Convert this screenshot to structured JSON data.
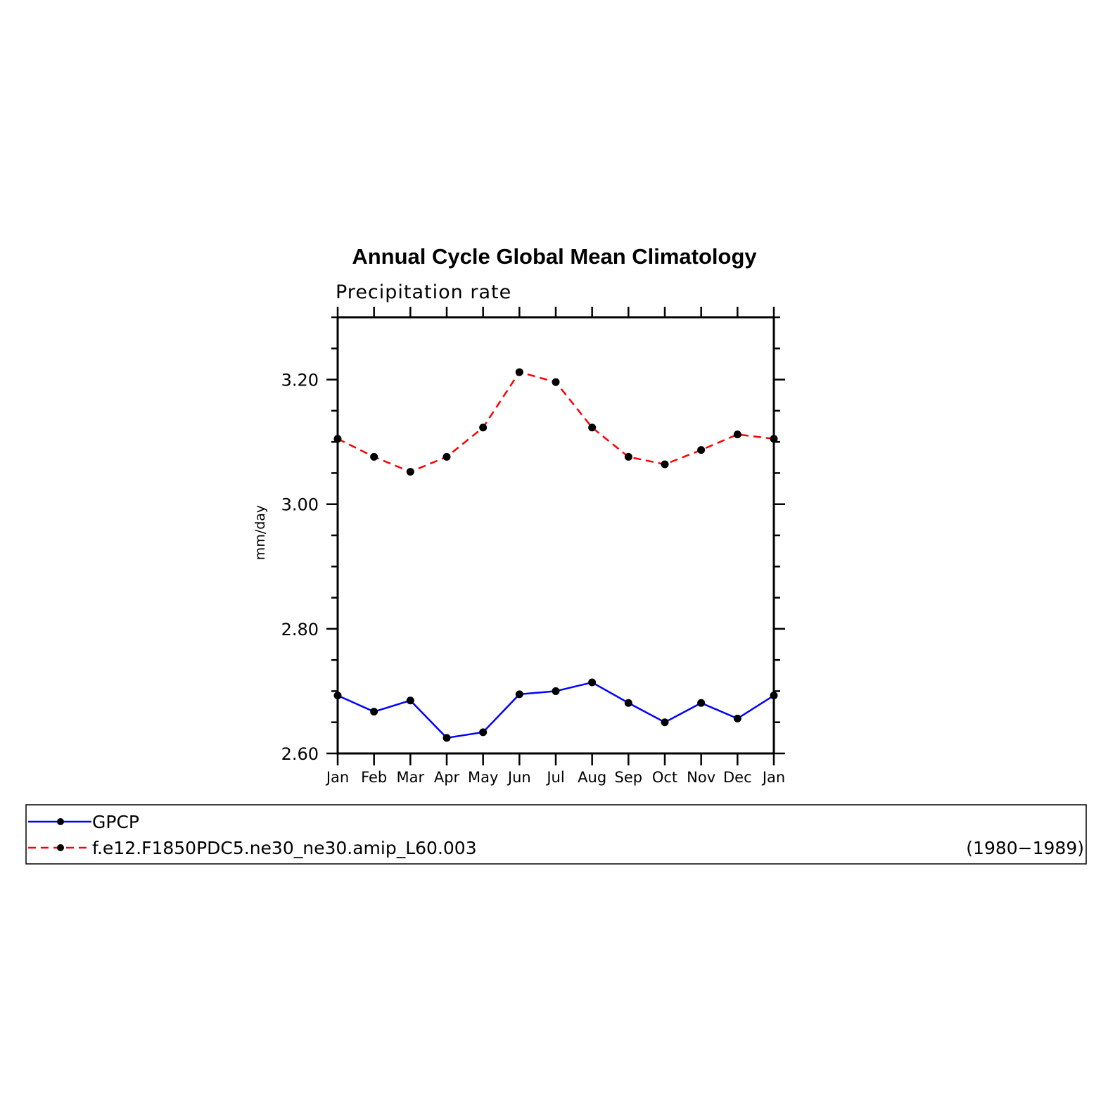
{
  "chart_data": {
    "type": "line",
    "title": "Annual Cycle Global Mean Climatology",
    "subtitle": "Precipitation rate",
    "ylabel": "mm/day",
    "xlabel": "",
    "categories": [
      "Jan",
      "Feb",
      "Mar",
      "Apr",
      "May",
      "Jun",
      "Jul",
      "Aug",
      "Sep",
      "Oct",
      "Nov",
      "Dec",
      "Jan"
    ],
    "ylim": [
      2.6,
      3.3
    ],
    "yticks": [
      "2.60",
      "2.80",
      "3.00",
      "3.20"
    ],
    "ytick_values": [
      2.6,
      2.8,
      3.0,
      3.2
    ],
    "series": [
      {
        "name": "GPCP",
        "color": "#0000ff",
        "dash": "solid",
        "values": [
          2.693,
          2.667,
          2.685,
          2.625,
          2.634,
          2.695,
          2.7,
          2.714,
          2.681,
          2.65,
          2.681,
          2.656,
          2.693
        ]
      },
      {
        "name": "f.e12.F1850PDC5.ne30_ne30.amip_L60.003",
        "color": "#ff0000",
        "dash": "dashed",
        "values": [
          3.105,
          3.076,
          3.052,
          3.076,
          3.123,
          3.212,
          3.196,
          3.123,
          3.076,
          3.064,
          3.087,
          3.112,
          3.105
        ]
      }
    ],
    "marker_color": "#000000",
    "legend_position": "bottom",
    "legend_note": "(1980−1989)"
  }
}
